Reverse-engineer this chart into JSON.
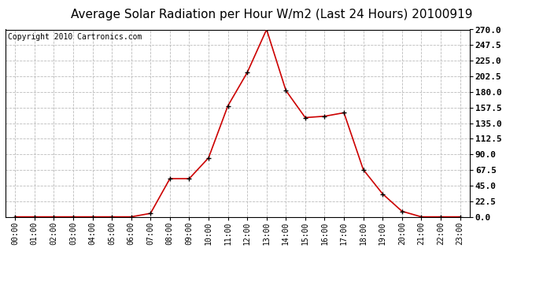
{
  "title": "Average Solar Radiation per Hour W/m2 (Last 24 Hours) 20100919",
  "copyright": "Copyright 2010 Cartronics.com",
  "x_labels": [
    "00:00",
    "01:00",
    "02:00",
    "03:00",
    "04:00",
    "05:00",
    "06:00",
    "07:00",
    "08:00",
    "09:00",
    "10:00",
    "11:00",
    "12:00",
    "13:00",
    "14:00",
    "15:00",
    "16:00",
    "17:00",
    "18:00",
    "19:00",
    "20:00",
    "21:00",
    "22:00",
    "23:00"
  ],
  "y_values": [
    0,
    0,
    0,
    0,
    0,
    0,
    0,
    5,
    55,
    55,
    85,
    160,
    208,
    270,
    182,
    143,
    145,
    150,
    68,
    33,
    8,
    0,
    0,
    0
  ],
  "line_color": "#cc0000",
  "marker_color": "#000000",
  "bg_color": "#ffffff",
  "grid_color": "#bbbbbb",
  "ylim": [
    0,
    270
  ],
  "yticks": [
    0,
    22.5,
    45,
    67.5,
    90,
    112.5,
    135,
    157.5,
    180,
    202.5,
    225,
    247.5,
    270
  ],
  "title_fontsize": 11,
  "copyright_fontsize": 7,
  "xlabel_fontsize": 7,
  "ylabel_fontsize": 8
}
